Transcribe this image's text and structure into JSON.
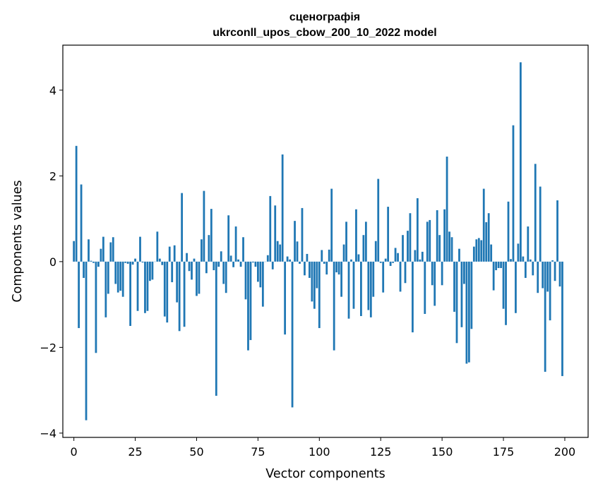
{
  "chart_data": {
    "type": "bar",
    "title": "сценографія",
    "subtitle": "ukrconll_upos_cbow_200_10_2022 model",
    "xlabel": "Vector components",
    "ylabel": "Components values",
    "xlim": [
      -4.5,
      209.5
    ],
    "ylim": [
      -4.1,
      5.05
    ],
    "xticks": [
      0,
      25,
      50,
      75,
      100,
      125,
      150,
      175,
      200
    ],
    "yticks": [
      -4,
      -2,
      0,
      2,
      4
    ],
    "ytick_labels": [
      "−4",
      "−2",
      "0",
      "2",
      "4"
    ],
    "grid": false,
    "bar_color": "#1f77b4",
    "x": [
      0,
      1,
      2,
      3,
      4,
      5,
      6,
      7,
      8,
      9,
      10,
      11,
      12,
      13,
      14,
      15,
      16,
      17,
      18,
      19,
      20,
      21,
      22,
      23,
      24,
      25,
      26,
      27,
      28,
      29,
      30,
      31,
      32,
      33,
      34,
      35,
      36,
      37,
      38,
      39,
      40,
      41,
      42,
      43,
      44,
      45,
      46,
      47,
      48,
      49,
      50,
      51,
      52,
      53,
      54,
      55,
      56,
      57,
      58,
      59,
      60,
      61,
      62,
      63,
      64,
      65,
      66,
      67,
      68,
      69,
      70,
      71,
      72,
      73,
      74,
      75,
      76,
      77,
      78,
      79,
      80,
      81,
      82,
      83,
      84,
      85,
      86,
      87,
      88,
      89,
      90,
      91,
      92,
      93,
      94,
      95,
      96,
      97,
      98,
      99,
      100,
      101,
      102,
      103,
      104,
      105,
      106,
      107,
      108,
      109,
      110,
      111,
      112,
      113,
      114,
      115,
      116,
      117,
      118,
      119,
      120,
      121,
      122,
      123,
      124,
      125,
      126,
      127,
      128,
      129,
      130,
      131,
      132,
      133,
      134,
      135,
      136,
      137,
      138,
      139,
      140,
      141,
      142,
      143,
      144,
      145,
      146,
      147,
      148,
      149,
      150,
      151,
      152,
      153,
      154,
      155,
      156,
      157,
      158,
      159,
      160,
      161,
      162,
      163,
      164,
      165,
      166,
      167,
      168,
      169,
      170,
      171,
      172,
      173,
      174,
      175,
      176,
      177,
      178,
      179,
      180,
      181,
      182,
      183,
      184,
      185,
      186,
      187,
      188,
      189,
      190,
      191,
      192,
      193,
      194,
      195,
      196,
      197,
      198,
      199
    ],
    "values": [
      0.48,
      2.7,
      -1.55,
      1.8,
      -0.38,
      -3.7,
      0.52,
      0.02,
      -0.03,
      -2.13,
      -0.12,
      0.3,
      0.58,
      -1.3,
      -0.75,
      0.45,
      0.57,
      -0.52,
      -0.72,
      -0.68,
      -0.82,
      -0.03,
      -0.05,
      -1.5,
      -0.07,
      0.07,
      -1.15,
      0.58,
      -0.02,
      -1.2,
      -1.15,
      -0.45,
      -0.42,
      0.0,
      0.7,
      0.07,
      -0.08,
      -1.28,
      -1.42,
      0.35,
      -0.48,
      0.38,
      -0.95,
      -1.62,
      1.6,
      -1.52,
      0.2,
      -0.22,
      -0.42,
      0.07,
      -0.8,
      -0.75,
      0.52,
      1.65,
      -0.27,
      0.62,
      1.23,
      -0.2,
      -3.13,
      -0.12,
      0.24,
      -0.52,
      -0.73,
      1.08,
      0.14,
      -0.13,
      0.82,
      0.05,
      -0.12,
      0.57,
      -0.88,
      -2.07,
      -1.83,
      -0.02,
      -0.12,
      -0.47,
      -0.6,
      -1.05,
      0.0,
      0.15,
      1.53,
      -0.18,
      1.31,
      0.48,
      0.4,
      2.5,
      -1.7,
      0.12,
      0.05,
      -3.4,
      0.95,
      0.47,
      -0.05,
      1.25,
      -0.32,
      0.18,
      -0.38,
      -0.93,
      -1.1,
      -0.62,
      -1.55,
      0.27,
      -0.05,
      -0.3,
      0.28,
      1.7,
      -2.07,
      -0.25,
      -0.3,
      -0.82,
      0.4,
      0.93,
      -1.33,
      0.05,
      -1.1,
      1.22,
      0.17,
      -1.27,
      0.62,
      0.93,
      -1.13,
      -1.3,
      -0.82,
      0.48,
      1.93,
      -0.03,
      -0.72,
      0.07,
      1.28,
      -0.1,
      -0.03,
      0.32,
      0.2,
      -0.7,
      0.62,
      -0.5,
      0.72,
      1.13,
      -1.65,
      0.27,
      1.48,
      0.05,
      0.23,
      -1.22,
      0.93,
      0.97,
      -0.55,
      -1.03,
      1.2,
      0.62,
      -0.55,
      1.22,
      2.45,
      0.7,
      0.57,
      -1.17,
      -1.9,
      0.3,
      -1.53,
      -0.52,
      -2.38,
      -2.35,
      -1.57,
      0.35,
      0.52,
      0.55,
      0.5,
      1.7,
      0.92,
      1.13,
      0.4,
      -0.67,
      -0.2,
      -0.15,
      -0.15,
      -1.1,
      -1.48,
      1.4,
      0.06,
      3.18,
      -1.2,
      0.42,
      4.65,
      0.12,
      -0.38,
      0.82,
      0.05,
      -0.32,
      2.28,
      -0.73,
      1.75,
      -0.62,
      -2.57,
      -0.7,
      -1.37,
      0.03,
      -0.45,
      1.43,
      -0.58,
      -2.67
    ]
  }
}
